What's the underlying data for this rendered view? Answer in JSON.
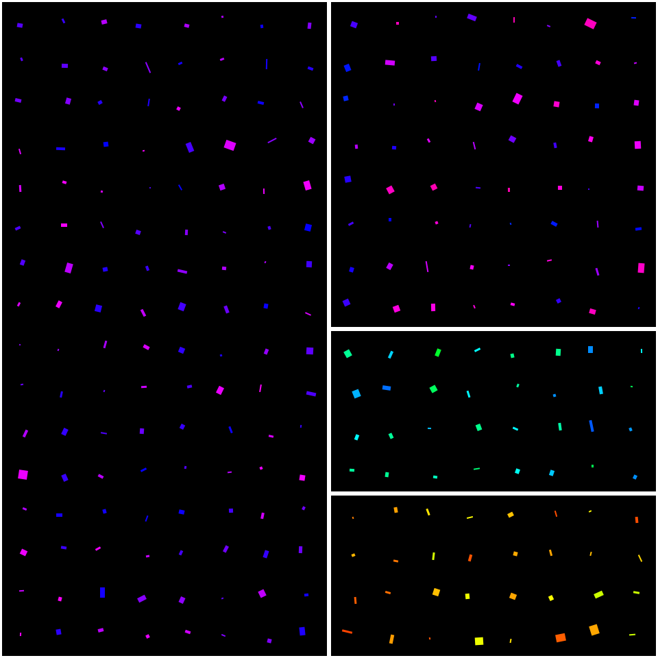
{
  "canvas": {
    "background_color": "#ffffff",
    "divider_color": "#ffffff",
    "panel_background": "#000000"
  },
  "panels": [
    {
      "name": "left-tile-panel",
      "rows": 16,
      "cols": 8,
      "hue_range": [
        240,
        300
      ],
      "seed": 17
    },
    {
      "name": "top-right-tile-panel",
      "rows": 8,
      "cols": 8,
      "hue_range": [
        230,
        320
      ],
      "seed": 29
    },
    {
      "name": "middle-right-tile-panel",
      "rows": 4,
      "cols": 8,
      "hue_range": [
        130,
        220
      ],
      "seed": 41
    },
    {
      "name": "bottom-right-tile-panel",
      "rows": 4,
      "cols": 8,
      "hue_range": [
        15,
        75
      ],
      "seed": 53
    }
  ]
}
